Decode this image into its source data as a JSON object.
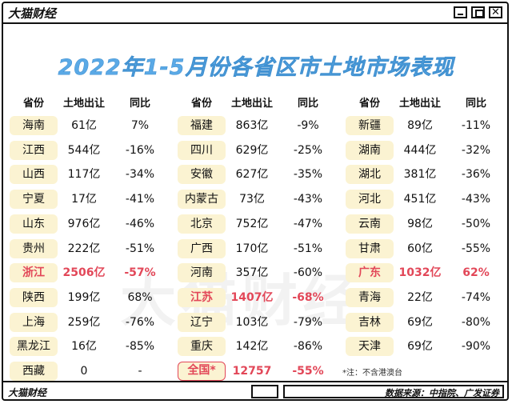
{
  "window": {
    "brand": "大猫财经",
    "controls": {
      "close": "✕"
    }
  },
  "title": "2022年1-5月份各省区市土地市场表现",
  "watermark": "大猫财经",
  "column_headers": [
    "省份",
    "土地出让",
    "同比",
    "省份",
    "土地出让",
    "同比",
    "省份",
    "土地出让",
    "同比"
  ],
  "note": "*注：不含港澳台",
  "footer": {
    "brand": "大猫财经",
    "source": "数据来源：中指院、广发证券"
  },
  "colors": {
    "title": "#5aa9e6",
    "highlight": "#e24758",
    "pill": "#fbf3d2"
  },
  "chart_data": {
    "type": "table",
    "title": "2022年1-5月份各省区市土地市场表现",
    "columns": [
      "省份",
      "土地出让",
      "同比"
    ],
    "unit": "亿",
    "groups": [
      [
        {
          "province": "海南",
          "land": "61亿",
          "yoy": "7%"
        },
        {
          "province": "江西",
          "land": "544亿",
          "yoy": "-16%"
        },
        {
          "province": "山西",
          "land": "117亿",
          "yoy": "-34%"
        },
        {
          "province": "宁夏",
          "land": "17亿",
          "yoy": "-41%"
        },
        {
          "province": "山东",
          "land": "976亿",
          "yoy": "-46%"
        },
        {
          "province": "贵州",
          "land": "222亿",
          "yoy": "-51%"
        },
        {
          "province": "浙江",
          "land": "2506亿",
          "yoy": "-57%",
          "highlight": true
        },
        {
          "province": "陕西",
          "land": "199亿",
          "yoy": "68%"
        },
        {
          "province": "上海",
          "land": "259亿",
          "yoy": "-76%"
        },
        {
          "province": "黑龙江",
          "land": "16亿",
          "yoy": "-85%"
        },
        {
          "province": "西藏",
          "land": "0",
          "yoy": "-"
        }
      ],
      [
        {
          "province": "福建",
          "land": "863亿",
          "yoy": "-9%"
        },
        {
          "province": "四川",
          "land": "629亿",
          "yoy": "-25%"
        },
        {
          "province": "安徽",
          "land": "627亿",
          "yoy": "-35%"
        },
        {
          "province": "内蒙古",
          "land": "73亿",
          "yoy": "-43%"
        },
        {
          "province": "北京",
          "land": "752亿",
          "yoy": "-47%"
        },
        {
          "province": "广西",
          "land": "170亿",
          "yoy": "-51%"
        },
        {
          "province": "河南",
          "land": "357亿",
          "yoy": "-60%"
        },
        {
          "province": "江苏",
          "land": "1407亿",
          "yoy": "-68%",
          "highlight": true
        },
        {
          "province": "辽宁",
          "land": "103亿",
          "yoy": "-79%"
        },
        {
          "province": "重庆",
          "land": "142亿",
          "yoy": "-86%"
        },
        {
          "province": "全国*",
          "land": "12757",
          "yoy": "-55%",
          "highlight": true,
          "boxed": true
        }
      ],
      [
        {
          "province": "新疆",
          "land": "89亿",
          "yoy": "-11%"
        },
        {
          "province": "湖南",
          "land": "444亿",
          "yoy": "-32%"
        },
        {
          "province": "湖北",
          "land": "381亿",
          "yoy": "-36%"
        },
        {
          "province": "河北",
          "land": "451亿",
          "yoy": "-43%"
        },
        {
          "province": "云南",
          "land": "98亿",
          "yoy": "-50%"
        },
        {
          "province": "甘肃",
          "land": "60亿",
          "yoy": "-55%"
        },
        {
          "province": "广东",
          "land": "1032亿",
          "yoy": "62%",
          "highlight": true
        },
        {
          "province": "青海",
          "land": "22亿",
          "yoy": "-74%"
        },
        {
          "province": "吉林",
          "land": "69亿",
          "yoy": "-80%"
        },
        {
          "province": "天津",
          "land": "69亿",
          "yoy": "-90%"
        }
      ]
    ]
  }
}
